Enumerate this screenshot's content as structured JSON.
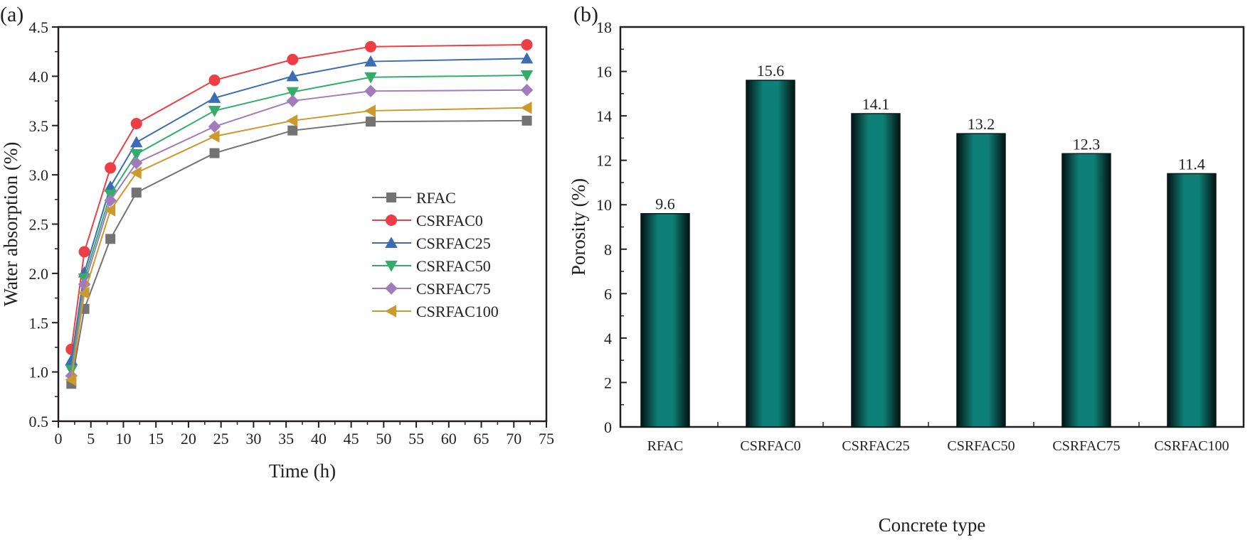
{
  "chart_data": [
    {
      "panel_label": "(a)",
      "type": "line",
      "title": "",
      "xlabel": "Time (h)",
      "ylabel": "Water absorption (%)",
      "xlim": [
        0,
        75
      ],
      "ylim": [
        0.5,
        4.5
      ],
      "xticks": [
        0,
        5,
        10,
        15,
        20,
        25,
        30,
        35,
        40,
        45,
        50,
        55,
        60,
        65,
        70,
        75
      ],
      "yticks": [
        "0.5",
        "1.0",
        "1.5",
        "2.0",
        "2.5",
        "3.0",
        "3.5",
        "4.0",
        "4.5"
      ],
      "grid": false,
      "legend_position": "center-right",
      "x": [
        2,
        4,
        8,
        12,
        24,
        36,
        48,
        72
      ],
      "series": [
        {
          "name": "RFAC",
          "color": "#737373",
          "marker": "square",
          "values": [
            0.88,
            1.64,
            2.35,
            2.82,
            3.22,
            3.45,
            3.54,
            3.55
          ]
        },
        {
          "name": "CSRFAC0",
          "color": "#ee3e45",
          "marker": "circle",
          "values": [
            1.23,
            2.22,
            3.07,
            3.52,
            3.96,
            4.17,
            4.3,
            4.32
          ]
        },
        {
          "name": "CSRFAC25",
          "color": "#3b6db5",
          "marker": "triangle-up",
          "values": [
            1.12,
            2.01,
            2.88,
            3.33,
            3.78,
            4.0,
            4.15,
            4.18
          ]
        },
        {
          "name": "CSRFAC50",
          "color": "#34ad6b",
          "marker": "triangle-down",
          "values": [
            1.02,
            1.95,
            2.8,
            3.21,
            3.65,
            3.84,
            3.99,
            4.01
          ]
        },
        {
          "name": "CSRFAC75",
          "color": "#a07cbc",
          "marker": "diamond",
          "values": [
            0.96,
            1.89,
            2.74,
            3.12,
            3.49,
            3.75,
            3.85,
            3.86
          ]
        },
        {
          "name": "CSRFAC100",
          "color": "#cc9a2c",
          "marker": "triangle-left",
          "values": [
            0.92,
            1.8,
            2.64,
            3.02,
            3.39,
            3.55,
            3.65,
            3.68
          ]
        }
      ]
    },
    {
      "panel_label": "(b)",
      "type": "bar",
      "title": "",
      "xlabel": "Concrete type",
      "ylabel": "Porosity (%)",
      "ylim": [
        0,
        18
      ],
      "yticks": [
        "0",
        "2",
        "4",
        "6",
        "8",
        "10",
        "12",
        "14",
        "16",
        "18"
      ],
      "grid": false,
      "categories": [
        "RFAC",
        "CSRFAC0",
        "CSRFAC25",
        "CSRFAC50",
        "CSRFAC75",
        "CSRFAC100"
      ],
      "values": [
        9.6,
        15.6,
        14.1,
        13.2,
        12.3,
        11.4
      ],
      "data_labels": [
        "9.6",
        "15.6",
        "14.1",
        "13.2",
        "12.3",
        "11.4"
      ],
      "bar_color": "#0e8078",
      "bar_edge_color": "#051a19"
    }
  ]
}
